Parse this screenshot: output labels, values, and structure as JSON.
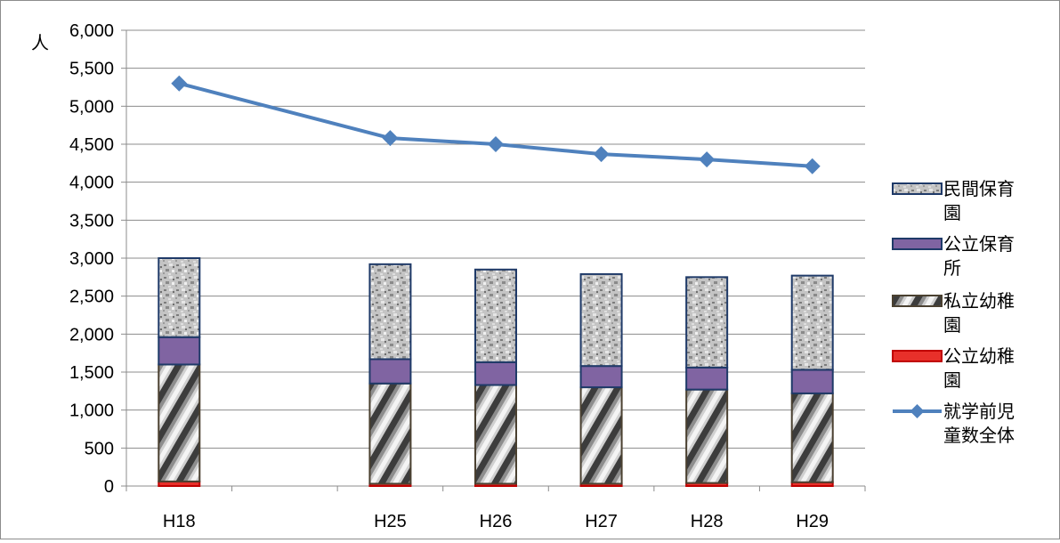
{
  "chart_data": {
    "type": "bar",
    "stacked": true,
    "categories": [
      "H18",
      "",
      "H25",
      "H26",
      "H27",
      "H28",
      "H29"
    ],
    "ylabel": "人",
    "ylim": [
      0,
      6000
    ],
    "yticks": [
      "0",
      "500",
      "1,000",
      "1,500",
      "2,000",
      "2,500",
      "3,000",
      "3,500",
      "4,000",
      "4,500",
      "5,000",
      "5,500",
      "6,000"
    ],
    "grid": true,
    "legend_position": "right",
    "series": [
      {
        "name": "公立幼稚園",
        "kind": "bar",
        "color": "#e8302a",
        "values": [
          60,
          null,
          30,
          30,
          30,
          40,
          50
        ]
      },
      {
        "name": "私立幼稚園",
        "kind": "bar",
        "color": "#8a8a8a",
        "values": [
          1540,
          null,
          1320,
          1300,
          1270,
          1230,
          1170
        ]
      },
      {
        "name": "公立保育所",
        "kind": "bar",
        "color": "#8064a2",
        "values": [
          360,
          null,
          320,
          300,
          280,
          290,
          310
        ]
      },
      {
        "name": "民間保育園",
        "kind": "bar",
        "color": "#b5b5b5",
        "values": [
          1040,
          null,
          1250,
          1220,
          1210,
          1190,
          1240
        ]
      },
      {
        "name": "就学前児童数全体",
        "kind": "line",
        "color": "#4f81bd",
        "values": [
          5300,
          null,
          4580,
          4500,
          4370,
          4300,
          4210
        ]
      }
    ],
    "legend_order": [
      "民間保育園",
      "公立保育所",
      "私立幼稚園",
      "公立幼稚園",
      "就学前児童数全体"
    ]
  }
}
